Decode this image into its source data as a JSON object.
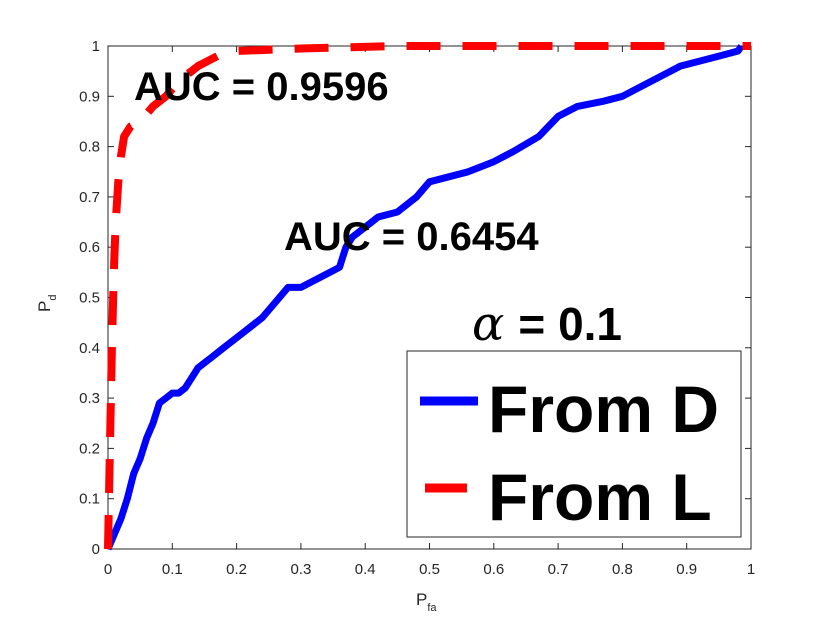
{
  "chart_data": {
    "type": "line",
    "xlabel": {
      "main": "P",
      "sub": "fa"
    },
    "ylabel": {
      "main": "P",
      "sub": "d"
    },
    "xlim": [
      0,
      1
    ],
    "ylim": [
      0,
      1
    ],
    "xticks": [
      "0",
      "0.1",
      "0.2",
      "0.3",
      "0.4",
      "0.5",
      "0.6",
      "0.7",
      "0.8",
      "0.9",
      "1"
    ],
    "yticks": [
      "0",
      "0.1",
      "0.2",
      "0.3",
      "0.4",
      "0.5",
      "0.6",
      "0.7",
      "0.8",
      "0.9",
      "1"
    ],
    "grid": false,
    "legend_position": "bottom-right",
    "annotations": {
      "auc_L": "AUC = 0.9596",
      "auc_D": "AUC = 0.6454",
      "alpha_symbol": "α",
      "alpha_value": "= 0.1"
    },
    "series": [
      {
        "name": "From D",
        "color": "#0000ff",
        "style": "solid",
        "points": [
          [
            0,
            0
          ],
          [
            0.01,
            0.03
          ],
          [
            0.02,
            0.06
          ],
          [
            0.03,
            0.1
          ],
          [
            0.04,
            0.15
          ],
          [
            0.05,
            0.18
          ],
          [
            0.06,
            0.22
          ],
          [
            0.07,
            0.25
          ],
          [
            0.08,
            0.29
          ],
          [
            0.09,
            0.3
          ],
          [
            0.1,
            0.31
          ],
          [
            0.11,
            0.31
          ],
          [
            0.12,
            0.32
          ],
          [
            0.13,
            0.34
          ],
          [
            0.14,
            0.36
          ],
          [
            0.15,
            0.37
          ],
          [
            0.16,
            0.38
          ],
          [
            0.18,
            0.4
          ],
          [
            0.2,
            0.42
          ],
          [
            0.22,
            0.44
          ],
          [
            0.24,
            0.46
          ],
          [
            0.26,
            0.49
          ],
          [
            0.28,
            0.52
          ],
          [
            0.3,
            0.52
          ],
          [
            0.33,
            0.54
          ],
          [
            0.36,
            0.56
          ],
          [
            0.37,
            0.6
          ],
          [
            0.38,
            0.62
          ],
          [
            0.4,
            0.64
          ],
          [
            0.42,
            0.66
          ],
          [
            0.45,
            0.67
          ],
          [
            0.48,
            0.7
          ],
          [
            0.5,
            0.73
          ],
          [
            0.53,
            0.74
          ],
          [
            0.56,
            0.75
          ],
          [
            0.6,
            0.77
          ],
          [
            0.63,
            0.79
          ],
          [
            0.67,
            0.82
          ],
          [
            0.7,
            0.86
          ],
          [
            0.73,
            0.88
          ],
          [
            0.77,
            0.89
          ],
          [
            0.8,
            0.9
          ],
          [
            0.83,
            0.92
          ],
          [
            0.86,
            0.94
          ],
          [
            0.89,
            0.96
          ],
          [
            0.92,
            0.97
          ],
          [
            0.95,
            0.98
          ],
          [
            0.98,
            0.99
          ],
          [
            0.985,
            1.0
          ]
        ]
      },
      {
        "name": "From L",
        "color": "#ff0000",
        "style": "dashed",
        "points": [
          [
            0,
            0
          ],
          [
            0.003,
            0.2
          ],
          [
            0.006,
            0.4
          ],
          [
            0.009,
            0.55
          ],
          [
            0.012,
            0.65
          ],
          [
            0.016,
            0.73
          ],
          [
            0.02,
            0.78
          ],
          [
            0.025,
            0.82
          ],
          [
            0.035,
            0.84
          ],
          [
            0.05,
            0.85
          ],
          [
            0.07,
            0.88
          ],
          [
            0.09,
            0.9
          ],
          [
            0.11,
            0.93
          ],
          [
            0.14,
            0.96
          ],
          [
            0.17,
            0.98
          ],
          [
            0.2,
            0.99
          ],
          [
            0.3,
            0.995
          ],
          [
            0.45,
            1.0
          ],
          [
            1.0,
            1.0
          ]
        ]
      }
    ]
  }
}
